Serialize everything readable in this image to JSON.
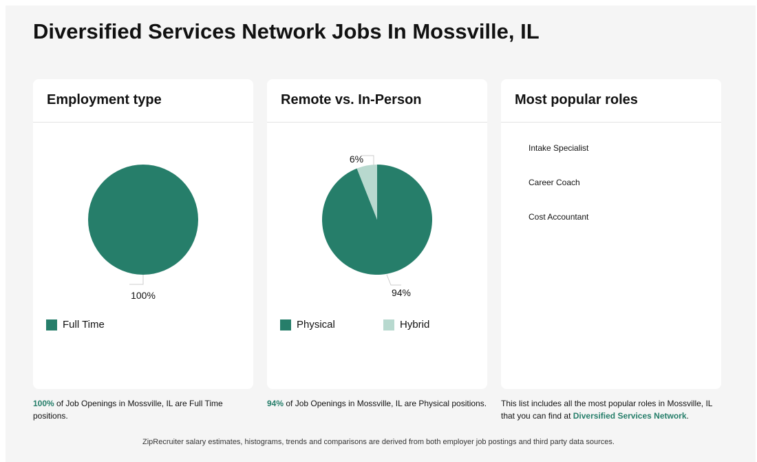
{
  "page": {
    "title": "Diversified Services Network Jobs In Mossville, IL",
    "footer": "ZipRecruiter salary estimates, histograms, trends and comparisons are derived from both employer job postings and third party data sources."
  },
  "colors": {
    "primary": "#267e6a",
    "secondary": "#b8d9cf",
    "background": "#f5f5f5"
  },
  "employment": {
    "title": "Employment type",
    "chart_data": {
      "type": "pie",
      "categories": [
        "Full Time"
      ],
      "values": [
        100
      ],
      "labels": [
        "100%"
      ]
    },
    "legend": [
      {
        "label": "Full Time",
        "color": "#267e6a"
      }
    ],
    "caption": {
      "highlight": "100%",
      "text": " of Job Openings in Mossville, IL are Full Time positions."
    }
  },
  "remote": {
    "title": "Remote vs. In-Person",
    "chart_data": {
      "type": "pie",
      "categories": [
        "Physical",
        "Hybrid"
      ],
      "values": [
        94,
        6
      ],
      "labels": [
        "94%",
        "6%"
      ]
    },
    "legend": [
      {
        "label": "Physical",
        "color": "#267e6a"
      },
      {
        "label": "Hybrid",
        "color": "#b8d9cf"
      }
    ],
    "caption": {
      "highlight": "94%",
      "text": " of Job Openings in Mossville, IL are Physical positions."
    }
  },
  "roles": {
    "title": "Most popular roles",
    "items": [
      "Intake Specialist",
      "Career Coach",
      "Cost Accountant"
    ],
    "caption": {
      "text": "This list includes all the most popular roles in Mossville, IL that you can find at ",
      "link": "Diversified Services Network",
      "end": "."
    }
  }
}
